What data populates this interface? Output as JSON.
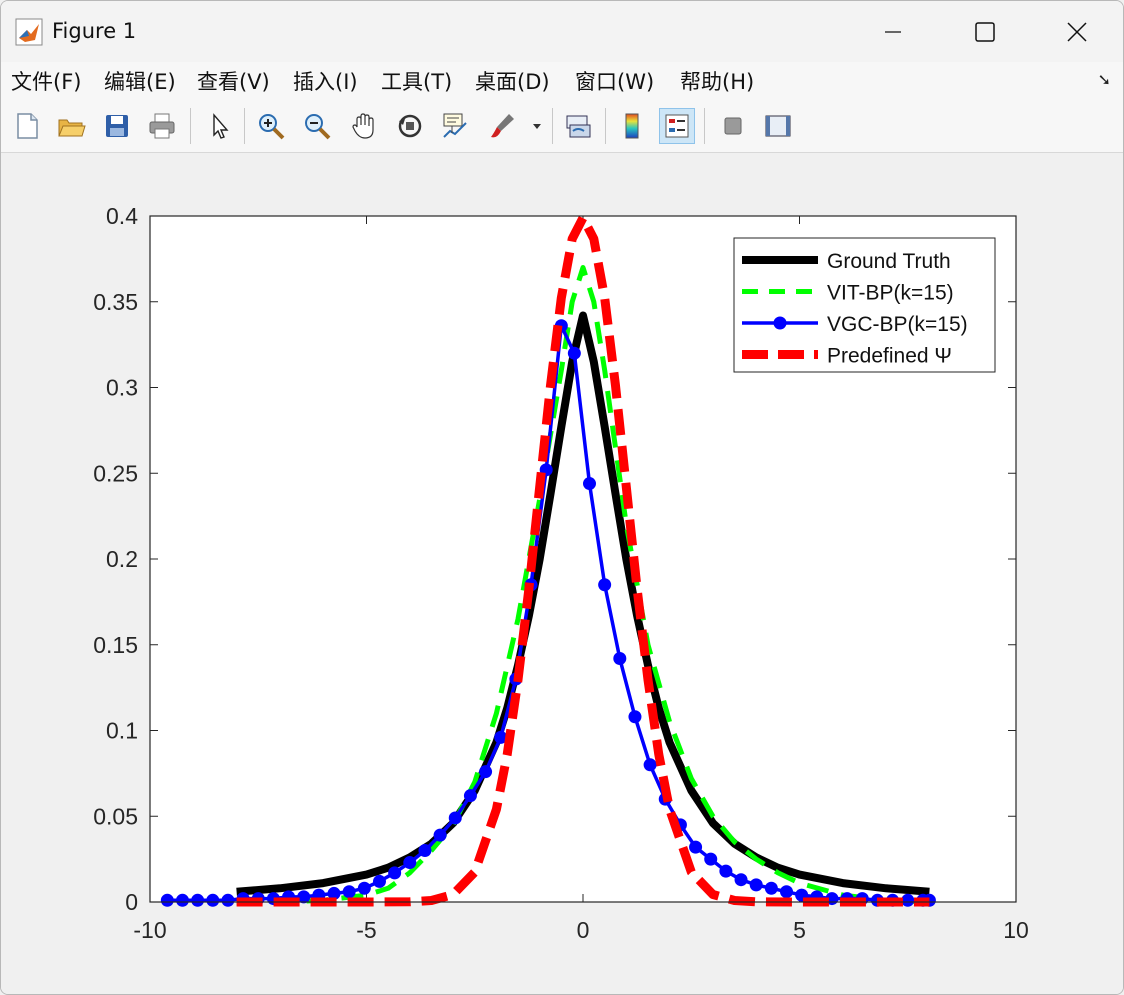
{
  "window": {
    "title": "Figure 1"
  },
  "menu": [
    {
      "label": "文件(F)"
    },
    {
      "label": "编辑(E)"
    },
    {
      "label": "查看(V)"
    },
    {
      "label": "插入(I)"
    },
    {
      "label": "工具(T)"
    },
    {
      "label": "桌面(D)"
    },
    {
      "label": "窗口(W)"
    },
    {
      "label": "帮助(H)"
    }
  ],
  "toolbar": {
    "icons": [
      "new-figure-icon",
      "open-file-icon",
      "save-icon",
      "print-icon",
      "select-pointer-icon",
      "zoom-in-icon",
      "zoom-out-icon",
      "pan-hand-icon",
      "rotate-3d-icon",
      "data-cursor-icon",
      "brush-icon",
      "link-plot-icon",
      "colorbar-icon",
      "legend-icon",
      "hide-plot-tools-icon",
      "show-plot-tools-icon"
    ],
    "active": "legend-icon"
  },
  "chart_data": {
    "type": "line",
    "title": "",
    "xlabel": "",
    "ylabel": "",
    "xlim": [
      -10,
      10
    ],
    "ylim": [
      0,
      0.4
    ],
    "xticks": [
      -10,
      -5,
      0,
      5,
      10
    ],
    "yticks": [
      0,
      0.05,
      0.1,
      0.15,
      0.2,
      0.25,
      0.3,
      0.35,
      0.4
    ],
    "xtick_labels": [
      "-10",
      "-5",
      "0",
      "5",
      "10"
    ],
    "ytick_labels": [
      "0",
      "0.05",
      "0.1",
      "0.15",
      "0.2",
      "0.25",
      "0.3",
      "0.35",
      "0.4"
    ],
    "grid": false,
    "legend_position": "top-right",
    "series": [
      {
        "name": "Ground Truth",
        "color": "#000000",
        "style": "solid",
        "x": [
          -8,
          -7,
          -6,
          -5,
          -4.5,
          -4,
          -3.5,
          -3,
          -2.5,
          -2,
          -1.75,
          -1.5,
          -1.25,
          -1,
          -0.75,
          -0.5,
          -0.25,
          0,
          0.25,
          0.5,
          0.75,
          1,
          1.25,
          1.5,
          1.75,
          2,
          2.5,
          3,
          3.5,
          4,
          4.5,
          5,
          6,
          7,
          8
        ],
        "y": [
          0.006,
          0.008,
          0.011,
          0.016,
          0.02,
          0.026,
          0.034,
          0.046,
          0.065,
          0.093,
          0.113,
          0.138,
          0.167,
          0.2,
          0.238,
          0.277,
          0.315,
          0.342,
          0.315,
          0.277,
          0.238,
          0.2,
          0.167,
          0.138,
          0.113,
          0.093,
          0.065,
          0.046,
          0.034,
          0.026,
          0.02,
          0.016,
          0.011,
          0.008,
          0.006
        ]
      },
      {
        "name": "VIT-BP(k=15)",
        "color": "#00ff00",
        "style": "dashed",
        "x": [
          -8,
          -7,
          -6,
          -5,
          -4.5,
          -4,
          -3.5,
          -3,
          -2.5,
          -2,
          -1.5,
          -1,
          -0.5,
          -0.25,
          0,
          0.25,
          0.5,
          1,
          1.5,
          2,
          2.5,
          3,
          3.5,
          4,
          4.5,
          5,
          6,
          7,
          8
        ],
        "y": [
          0.0,
          0.0,
          0.001,
          0.004,
          0.008,
          0.017,
          0.03,
          0.045,
          0.07,
          0.11,
          0.165,
          0.235,
          0.31,
          0.35,
          0.37,
          0.35,
          0.31,
          0.22,
          0.15,
          0.105,
          0.072,
          0.05,
          0.035,
          0.025,
          0.017,
          0.011,
          0.004,
          0.001,
          0.0
        ]
      },
      {
        "name": "VGC-BP(k=15)",
        "color": "#0000ff",
        "style": "solid-marker",
        "x": [
          -9.6,
          -9.25,
          -8.9,
          -8.55,
          -8.2,
          -7.85,
          -7.5,
          -7.15,
          -6.8,
          -6.45,
          -6.1,
          -5.75,
          -5.4,
          -5.05,
          -4.7,
          -4.35,
          -4.0,
          -3.65,
          -3.3,
          -2.95,
          -2.6,
          -2.25,
          -1.9,
          -1.55,
          -1.2,
          -0.85,
          -0.5,
          -0.2,
          0.15,
          0.5,
          0.85,
          1.2,
          1.55,
          1.9,
          2.25,
          2.6,
          2.95,
          3.3,
          3.65,
          4.0,
          4.35,
          4.7,
          5.05,
          5.4,
          5.75,
          6.1,
          6.45,
          6.8,
          7.15,
          7.5,
          7.85,
          8.0
        ],
        "y": [
          0.001,
          0.001,
          0.001,
          0.001,
          0.001,
          0.002,
          0.002,
          0.002,
          0.003,
          0.003,
          0.004,
          0.005,
          0.006,
          0.008,
          0.012,
          0.017,
          0.023,
          0.03,
          0.039,
          0.049,
          0.062,
          0.076,
          0.096,
          0.13,
          0.185,
          0.252,
          0.336,
          0.32,
          0.244,
          0.185,
          0.142,
          0.108,
          0.08,
          0.06,
          0.045,
          0.032,
          0.025,
          0.018,
          0.013,
          0.01,
          0.008,
          0.006,
          0.004,
          0.003,
          0.002,
          0.002,
          0.002,
          0.001,
          0.001,
          0.001,
          0.001,
          0.001
        ]
      },
      {
        "name": "Predefined Ψ",
        "color": "#ff0000",
        "style": "dash-dot",
        "x": [
          -8,
          -7,
          -6,
          -5,
          -4,
          -3.5,
          -3,
          -2.5,
          -2,
          -1.75,
          -1.5,
          -1.25,
          -1,
          -0.75,
          -0.5,
          -0.25,
          0,
          0.25,
          0.5,
          0.75,
          1,
          1.25,
          1.5,
          1.75,
          2,
          2.5,
          3,
          3.5,
          4,
          5,
          6,
          7,
          8
        ],
        "y": [
          0,
          0,
          0,
          0,
          0.0001,
          0.0009,
          0.0044,
          0.0175,
          0.054,
          0.086,
          0.1295,
          0.1826,
          0.242,
          0.3011,
          0.3521,
          0.3867,
          0.3989,
          0.3867,
          0.3521,
          0.3011,
          0.242,
          0.1826,
          0.1295,
          0.086,
          0.054,
          0.0175,
          0.0044,
          0.0009,
          0.0001,
          0,
          0,
          0,
          0
        ]
      }
    ]
  }
}
